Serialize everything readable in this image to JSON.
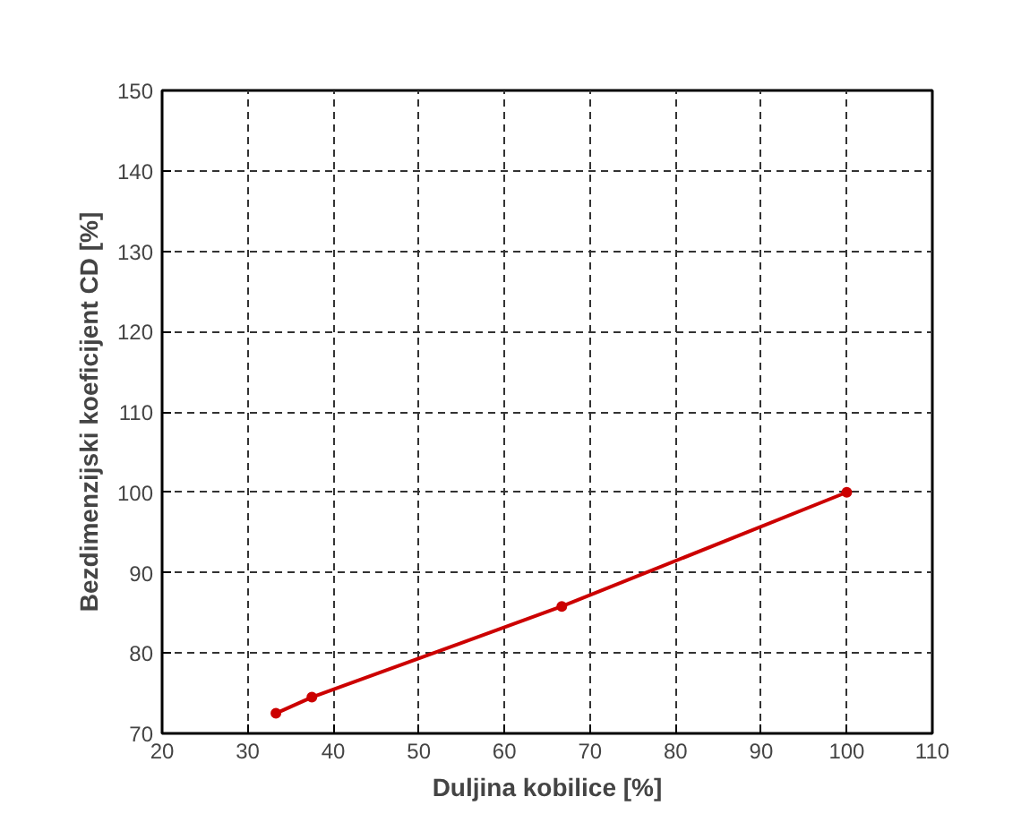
{
  "chart_data": {
    "type": "line",
    "xlabel": "Duljina kobilice [%]",
    "ylabel": "Bezdimenzijski koeficijent CD [%]",
    "x": [
      33.3,
      37.5,
      66.7,
      100
    ],
    "series": [
      {
        "color": "#cc0000",
        "values": [
          72.5,
          74.5,
          85.8,
          100
        ]
      }
    ],
    "xlim": [
      20,
      110
    ],
    "xticks": [
      20,
      30,
      40,
      50,
      60,
      70,
      80,
      90,
      100,
      110
    ],
    "ylim": [
      70,
      150
    ],
    "yticks": [
      70,
      80,
      90,
      100,
      110,
      120,
      130,
      140,
      150
    ],
    "grid": true,
    "marker": "circle",
    "line_style": "solid"
  }
}
